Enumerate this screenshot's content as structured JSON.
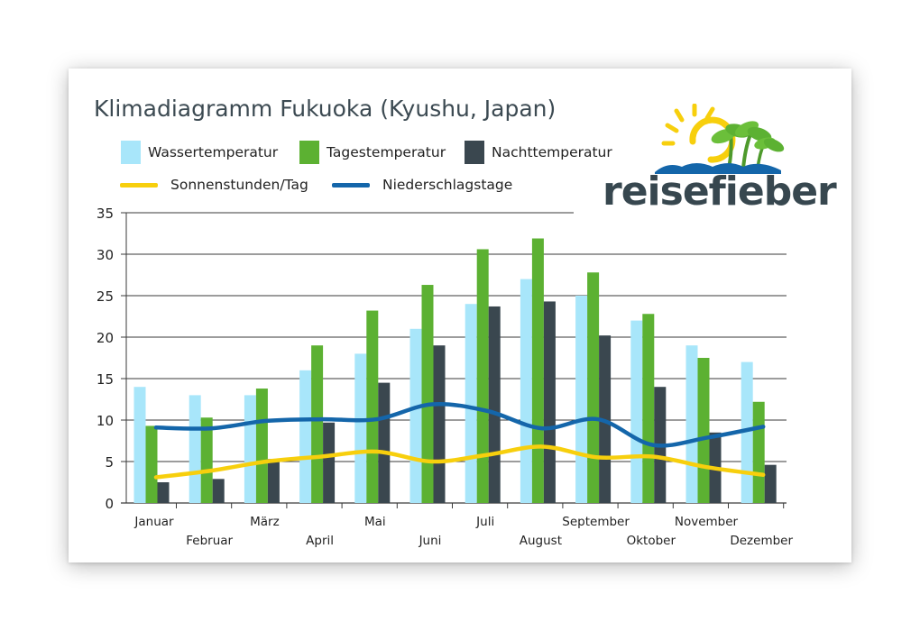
{
  "chart_data": {
    "type": "bar",
    "title": "Klimadiagramm Fukuoka (Kyushu, Japan)",
    "categories": [
      "Januar",
      "Februar",
      "März",
      "April",
      "Mai",
      "Juni",
      "Juli",
      "August",
      "September",
      "Oktober",
      "November",
      "Dezember"
    ],
    "ylim": [
      0,
      35
    ],
    "yticks": [
      "0",
      "5",
      "10",
      "15",
      "20",
      "25",
      "30",
      "35"
    ],
    "grid": true,
    "legend_position": "top-left",
    "series": [
      {
        "name": "Wassertemperatur",
        "kind": "bar",
        "color": "#a8e6fa",
        "values": [
          14,
          13,
          13,
          16,
          18,
          21,
          24,
          27,
          25,
          22,
          19,
          17
        ]
      },
      {
        "name": "Tagestemperatur",
        "kind": "bar",
        "color": "#5cb132",
        "values": [
          9.3,
          10.3,
          13.8,
          19,
          23.2,
          26.3,
          30.6,
          31.9,
          27.8,
          22.8,
          17.5,
          12.2
        ]
      },
      {
        "name": "Nachttemperatur",
        "kind": "bar",
        "color": "#3a474f",
        "values": [
          2.5,
          2.9,
          5.3,
          9.7,
          14.5,
          19,
          23.7,
          24.3,
          20.2,
          14,
          8.5,
          4.6
        ]
      },
      {
        "name": "Sonnenstunden/Tag",
        "kind": "line",
        "color": "#f7cf0d",
        "values": [
          3.1,
          3.9,
          5,
          5.6,
          6.2,
          5,
          5.8,
          6.8,
          5.5,
          5.6,
          4.3,
          3.4
        ]
      },
      {
        "name": "Niederschlagstage",
        "kind": "line",
        "color": "#1466aa",
        "values": [
          9.1,
          9,
          9.9,
          10.1,
          10.1,
          11.9,
          11.1,
          9,
          10.1,
          7,
          7.9,
          9.2
        ]
      }
    ]
  },
  "logo": {
    "text": "reisefieber"
  }
}
